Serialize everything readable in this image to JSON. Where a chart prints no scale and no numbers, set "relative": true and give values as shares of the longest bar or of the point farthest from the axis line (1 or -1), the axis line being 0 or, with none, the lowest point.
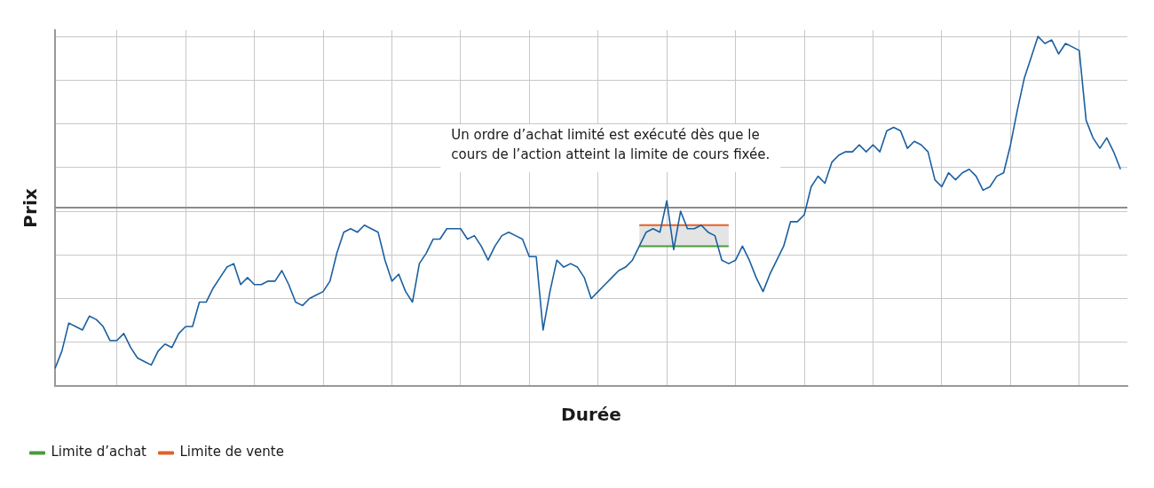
{
  "chart_data": {
    "type": "line",
    "relative": true,
    "xlabel": "Durée",
    "ylabel": "Prix",
    "grid": true,
    "legend": "bottom left",
    "marker": "none",
    "line_style": "solid",
    "annotations": [
      "Un ordre d’achat limité est exécuté dès que le cours de l’action atteint la limite de cours fixée."
    ],
    "ref_lines": [
      {
        "axis": "y",
        "value": 0.51,
        "color": "#8c8c8c"
      }
    ],
    "categories": [
      null,
      null,
      null,
      null,
      null,
      null,
      null,
      null,
      null,
      null,
      null,
      null,
      null,
      null,
      null,
      null,
      null,
      null,
      null,
      null,
      null,
      null,
      null,
      null,
      null,
      null,
      null,
      null,
      null,
      null,
      null,
      null,
      null,
      null,
      null,
      null,
      null,
      null,
      null,
      null,
      null,
      null,
      null,
      null,
      null,
      null,
      null,
      null,
      null,
      null,
      null,
      null,
      null,
      null,
      null,
      null,
      null,
      null,
      null,
      null,
      null,
      null,
      null,
      null,
      null,
      null,
      null,
      null,
      null,
      null,
      null,
      null,
      null,
      null,
      null,
      null,
      null,
      null,
      null,
      null,
      null,
      null,
      null,
      null,
      null,
      null,
      null,
      null,
      null,
      null,
      null,
      null,
      null,
      null,
      null,
      null,
      null,
      null,
      null,
      null,
      null,
      null,
      null,
      null,
      null,
      null,
      null,
      null,
      null,
      null,
      null,
      null,
      null,
      null,
      null,
      null,
      null,
      null,
      null,
      null,
      null,
      null,
      null,
      null,
      null,
      null,
      null,
      null,
      null,
      null,
      null,
      null,
      null,
      null,
      null,
      null,
      null,
      null,
      null,
      null,
      null,
      null,
      null,
      null,
      null,
      null,
      null,
      null,
      null,
      null,
      null,
      null,
      null,
      null,
      null,
      null,
      null
    ],
    "series": [
      {
        "color": "#1a5fa0",
        "values": [
          0.05,
          0.1,
          0.18,
          0.17,
          0.16,
          0.2,
          0.19,
          0.17,
          0.13,
          0.13,
          0.15,
          0.11,
          0.08,
          0.07,
          0.06,
          0.1,
          0.12,
          0.11,
          0.15,
          0.17,
          0.17,
          0.24,
          0.24,
          0.28,
          0.31,
          0.34,
          0.35,
          0.29,
          0.31,
          0.29,
          0.29,
          0.3,
          0.3,
          0.33,
          0.29,
          0.24,
          0.23,
          0.25,
          0.26,
          0.27,
          0.3,
          0.38,
          0.44,
          0.45,
          0.44,
          0.46,
          0.45,
          0.44,
          0.36,
          0.3,
          0.32,
          0.27,
          0.24,
          0.35,
          0.38,
          0.42,
          0.42,
          0.45,
          0.45,
          0.45,
          0.42,
          0.43,
          0.4,
          0.36,
          0.4,
          0.43,
          0.44,
          0.43,
          0.42,
          0.37,
          0.37,
          0.16,
          0.27,
          0.36,
          0.34,
          0.35,
          0.34,
          0.31,
          0.25,
          0.27,
          0.29,
          0.31,
          0.33,
          0.34,
          0.36,
          0.4,
          0.44,
          0.45,
          0.44,
          0.53,
          0.39,
          0.5,
          0.45,
          0.45,
          0.46,
          0.44,
          0.43,
          0.36,
          0.35,
          0.36,
          0.4,
          0.36,
          0.31,
          0.27,
          0.32,
          0.36,
          0.4,
          0.47,
          0.47,
          0.49,
          0.57,
          0.6,
          0.58,
          0.64,
          0.66,
          0.67,
          0.67,
          0.69,
          0.67,
          0.69,
          0.67,
          0.73,
          0.74,
          0.73,
          0.68,
          0.7,
          0.69,
          0.67,
          0.59,
          0.57,
          0.61,
          0.59,
          0.61,
          0.62,
          0.6,
          0.56,
          0.57,
          0.6,
          0.61,
          0.69,
          0.79,
          0.88,
          0.94,
          1,
          0.98,
          0.99,
          0.95,
          0.98,
          0.97,
          0.96,
          0.76,
          0.71,
          0.68,
          0.71,
          0.67,
          0.62,
          null
        ]
      },
      {
        "name": "Limite d’achat",
        "color": "#4a9a3c",
        "values": [
          null,
          null,
          null,
          null,
          null,
          null,
          null,
          null,
          null,
          null,
          null,
          null,
          null,
          null,
          null,
          null,
          null,
          null,
          null,
          null,
          null,
          null,
          null,
          null,
          null,
          null,
          null,
          null,
          null,
          null,
          null,
          null,
          null,
          null,
          null,
          null,
          null,
          null,
          null,
          null,
          null,
          null,
          null,
          null,
          null,
          null,
          null,
          null,
          null,
          null,
          null,
          null,
          null,
          null,
          null,
          null,
          null,
          null,
          null,
          null,
          null,
          null,
          null,
          null,
          null,
          null,
          null,
          null,
          null,
          null,
          null,
          null,
          null,
          null,
          null,
          null,
          null,
          null,
          null,
          null,
          null,
          null,
          null,
          null,
          null,
          0.4,
          0.4,
          0.4,
          0.4,
          0.4,
          0.4,
          0.4,
          0.4,
          0.4,
          0.4,
          0.4,
          0.4,
          0.4,
          0.4,
          null,
          null,
          null,
          null,
          null,
          null,
          null,
          null,
          null,
          null,
          null,
          null,
          null,
          null,
          null,
          null,
          null,
          null,
          null,
          null,
          null,
          null,
          null,
          null,
          null,
          null,
          null,
          null,
          null,
          null,
          null,
          null,
          null,
          null,
          null,
          null,
          null,
          null,
          null,
          null,
          null,
          null,
          null,
          null,
          null,
          null,
          null,
          null,
          null,
          null,
          null,
          null,
          null,
          null,
          null,
          null,
          null,
          null
        ]
      },
      {
        "name": "Limite de vente",
        "color": "#e0622a",
        "values": [
          null,
          null,
          null,
          null,
          null,
          null,
          null,
          null,
          null,
          null,
          null,
          null,
          null,
          null,
          null,
          null,
          null,
          null,
          null,
          null,
          null,
          null,
          null,
          null,
          null,
          null,
          null,
          null,
          null,
          null,
          null,
          null,
          null,
          null,
          null,
          null,
          null,
          null,
          null,
          null,
          null,
          null,
          null,
          null,
          null,
          null,
          null,
          null,
          null,
          null,
          null,
          null,
          null,
          null,
          null,
          null,
          null,
          null,
          null,
          null,
          null,
          null,
          null,
          null,
          null,
          null,
          null,
          null,
          null,
          null,
          null,
          null,
          null,
          null,
          null,
          null,
          null,
          null,
          null,
          null,
          null,
          null,
          null,
          null,
          null,
          0.46,
          0.46,
          0.46,
          0.46,
          0.46,
          0.46,
          0.46,
          0.46,
          0.46,
          0.46,
          0.46,
          0.46,
          0.46,
          0.46,
          null,
          null,
          null,
          null,
          null,
          null,
          null,
          null,
          null,
          null,
          null,
          null,
          null,
          null,
          null,
          null,
          null,
          null,
          null,
          null,
          null,
          null,
          null,
          null,
          null,
          null,
          null,
          null,
          null,
          null,
          null,
          null,
          null,
          null,
          null,
          null,
          null,
          null,
          null,
          null,
          null,
          null,
          null,
          null,
          null,
          null,
          null,
          null,
          null,
          null,
          null,
          null,
          null,
          null,
          null,
          null,
          null,
          null
        ],
        "lower": [
          null,
          null,
          null,
          null,
          null,
          null,
          null,
          null,
          null,
          null,
          null,
          null,
          null,
          null,
          null,
          null,
          null,
          null,
          null,
          null,
          null,
          null,
          null,
          null,
          null,
          null,
          null,
          null,
          null,
          null,
          null,
          null,
          null,
          null,
          null,
          null,
          null,
          null,
          null,
          null,
          null,
          null,
          null,
          null,
          null,
          null,
          null,
          null,
          null,
          null,
          null,
          null,
          null,
          null,
          null,
          null,
          null,
          null,
          null,
          null,
          null,
          null,
          null,
          null,
          null,
          null,
          null,
          null,
          null,
          null,
          null,
          null,
          null,
          null,
          null,
          null,
          null,
          null,
          null,
          null,
          null,
          null,
          null,
          null,
          null,
          0.4,
          0.4,
          0.4,
          0.4,
          0.4,
          0.4,
          0.4,
          0.4,
          0.4,
          0.4,
          0.4,
          0.4,
          0.4,
          0.4,
          null,
          null,
          null,
          null,
          null,
          null,
          null,
          null,
          null,
          null,
          null,
          null,
          null,
          null,
          null,
          null,
          null,
          null,
          null,
          null,
          null,
          null,
          null,
          null,
          null,
          null,
          null,
          null,
          null,
          null,
          null,
          null,
          null,
          null,
          null,
          null,
          null,
          null,
          null,
          null,
          null,
          null,
          null,
          null,
          null,
          null,
          null,
          null,
          null,
          null,
          null,
          null,
          null,
          null,
          null,
          null,
          null,
          null
        ],
        "upper": [
          null,
          null,
          null,
          null,
          null,
          null,
          null,
          null,
          null,
          null,
          null,
          null,
          null,
          null,
          null,
          null,
          null,
          null,
          null,
          null,
          null,
          null,
          null,
          null,
          null,
          null,
          null,
          null,
          null,
          null,
          null,
          null,
          null,
          null,
          null,
          null,
          null,
          null,
          null,
          null,
          null,
          null,
          null,
          null,
          null,
          null,
          null,
          null,
          null,
          null,
          null,
          null,
          null,
          null,
          null,
          null,
          null,
          null,
          null,
          null,
          null,
          null,
          null,
          null,
          null,
          null,
          null,
          null,
          null,
          null,
          null,
          null,
          null,
          null,
          null,
          null,
          null,
          null,
          null,
          null,
          null,
          null,
          null,
          null,
          null,
          0.46,
          0.46,
          0.46,
          0.46,
          0.46,
          0.46,
          0.46,
          0.46,
          0.46,
          0.46,
          0.46,
          0.46,
          0.46,
          0.46,
          null,
          null,
          null,
          null,
          null,
          null,
          null,
          null,
          null,
          null,
          null,
          null,
          null,
          null,
          null,
          null,
          null,
          null,
          null,
          null,
          null,
          null,
          null,
          null,
          null,
          null,
          null,
          null,
          null,
          null,
          null,
          null,
          null,
          null,
          null,
          null,
          null,
          null,
          null,
          null,
          null,
          null,
          null,
          null,
          null,
          null,
          null,
          null,
          null,
          null,
          null,
          null,
          null,
          null,
          null,
          null,
          null,
          null
        ]
      }
    ]
  }
}
